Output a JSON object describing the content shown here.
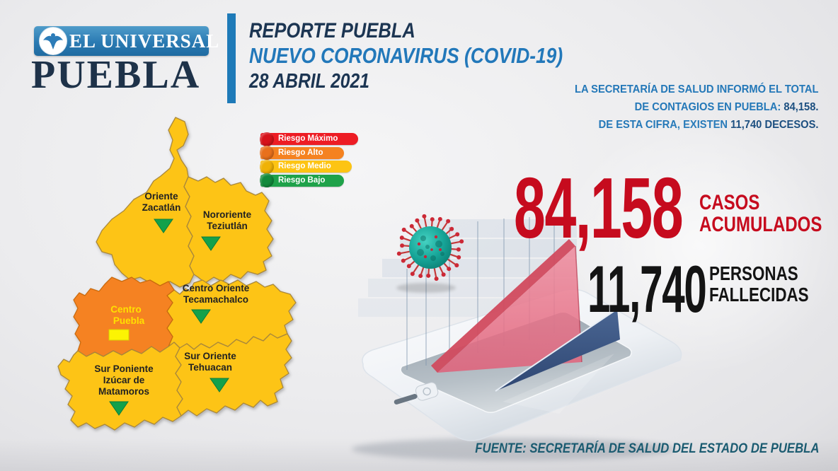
{
  "brand": {
    "masthead": "EL UNIVERSAL",
    "region_word": "PUEBLA"
  },
  "header": {
    "line1": "REPORTE PUEBLA",
    "line2": "NUEVO CORONAVIRUS (COVID-19)",
    "line3": "28 ABRIL 2021"
  },
  "summary": {
    "line1": "LA SECRETARÍA DE SALUD  INFORMÓ EL TOTAL",
    "line2_prefix": "DE CONTAGIOS EN PUEBLA: ",
    "line2_value": "84,158.",
    "line3_prefix": "DE ESTA CIFRA, EXISTEN ",
    "line3_value": "11,740 DECESOS."
  },
  "legend": {
    "items": [
      {
        "label": "Riesgo Máximo",
        "color": "#ed1c24"
      },
      {
        "label": "Riesgo Alto",
        "color": "#f58220"
      },
      {
        "label": "Riesgo Medio",
        "color": "#fdc413"
      },
      {
        "label": "Riesgo Bajo",
        "color": "#1fa24a"
      }
    ]
  },
  "map": {
    "regions": [
      {
        "name_lines": [
          "Oriente",
          "Zacatlán"
        ],
        "risk": "Riesgo Medio",
        "trend": "down"
      },
      {
        "name_lines": [
          "Nororiente",
          "Teziutlán"
        ],
        "risk": "Riesgo Medio",
        "trend": "down"
      },
      {
        "name_lines": [
          "Centro Oriente",
          "Tecamachalco"
        ],
        "risk": "Riesgo Medio",
        "trend": "down"
      },
      {
        "name_lines": [
          "Centro",
          "Puebla"
        ],
        "risk": "Riesgo Alto",
        "trend": "flat"
      },
      {
        "name_lines": [
          "Sur Poniente",
          "Izúcar de",
          "Matamoros"
        ],
        "risk": "Riesgo Medio",
        "trend": "down"
      },
      {
        "name_lines": [
          "Sur Oriente",
          "Tehuacan"
        ],
        "risk": "Riesgo Medio",
        "trend": "down"
      }
    ]
  },
  "stats": {
    "cases": {
      "value": "84,158",
      "label_lines": [
        "CASOS",
        "ACUMULADOS"
      ],
      "color": "#c60b1e"
    },
    "deaths": {
      "value": "11,740",
      "label_lines": [
        "PERSONAS",
        "FALLECIDAS"
      ],
      "color": "#141414"
    }
  },
  "source": {
    "text": "FUENTE: SECRETARÍA DE SALUD DEL ESTADO DE PUEBLA"
  },
  "colors": {
    "accent_blue": "#2278ba",
    "navy": "#1c3552",
    "map_yellow": "#fdc413",
    "map_orange": "#f58220",
    "trend_green": "#14a14b",
    "marker_yellow": "#fcf403",
    "virus_teal": "#18a79a",
    "virus_spike_red": "#c43a3a",
    "wedge_pink": "#e8798c",
    "wedge_blue": "#40598a"
  }
}
